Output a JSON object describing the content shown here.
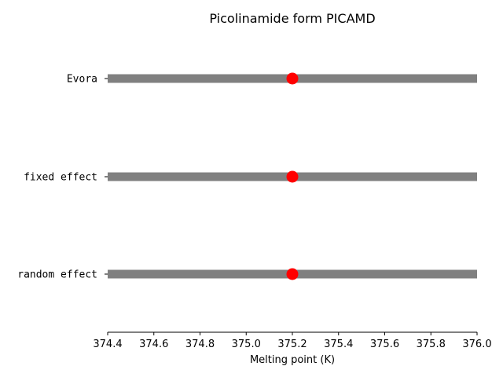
{
  "chart_data": {
    "type": "interval",
    "title": "Picolinamide form PICAMD",
    "xlabel": "Melting point (K)",
    "ylabel": "",
    "xlim": [
      374.4,
      376.0
    ],
    "xticks": [
      "374.4",
      "374.6",
      "374.8",
      "375.0",
      "375.2",
      "375.4",
      "375.6",
      "375.8",
      "376.0"
    ],
    "categories": [
      "Evora",
      "fixed effect",
      "random effect"
    ],
    "intervals": [
      {
        "label": "Evora",
        "low": 374.4,
        "high": 376.0,
        "point": 375.2
      },
      {
        "label": "fixed effect",
        "low": 374.4,
        "high": 376.0,
        "point": 375.2
      },
      {
        "label": "random effect",
        "low": 374.4,
        "high": 376.0,
        "point": 375.2
      }
    ],
    "colors": {
      "interval": "#808080",
      "point": "#ff0000"
    },
    "grid": false,
    "legend": "none"
  }
}
